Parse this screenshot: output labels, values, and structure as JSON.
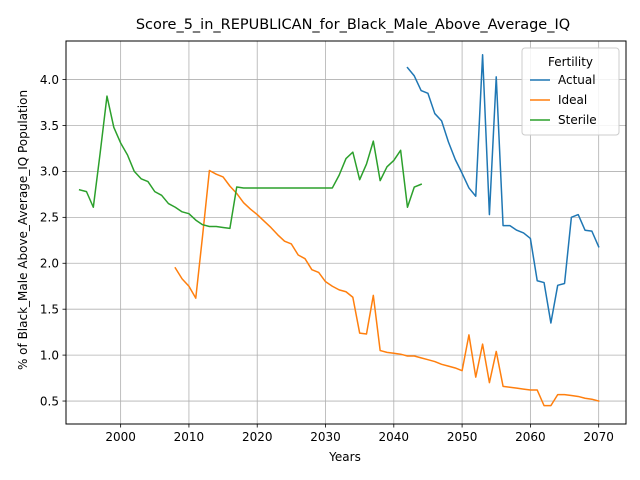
{
  "chart_data": {
    "type": "line",
    "title": "Score_5_in_REPUBLICAN_for_Black_Male_Above_Average_IQ",
    "xlabel": "Years",
    "ylabel": "% of Black_Male Above_Average_IQ Population",
    "xlim": [
      1992,
      2074
    ],
    "ylim": [
      0.25,
      4.42
    ],
    "xticks": [
      2000,
      2010,
      2020,
      2030,
      2040,
      2050,
      2060,
      2070
    ],
    "yticks": [
      0.5,
      1.0,
      1.5,
      2.0,
      2.5,
      3.0,
      3.5,
      4.0
    ],
    "xtick_labels": [
      "2000",
      "2010",
      "2020",
      "2030",
      "2040",
      "2050",
      "2060",
      "2070"
    ],
    "ytick_labels": [
      "0.5",
      "1.0",
      "1.5",
      "2.0",
      "2.5",
      "3.0",
      "3.5",
      "4.0"
    ],
    "grid": true,
    "legend": {
      "title": "Fertility",
      "placement": "top-right"
    },
    "series": [
      {
        "name": "Actual",
        "color": "#1f77b4",
        "x": [
          2042,
          2043,
          2044,
          2045,
          2046,
          2047,
          2048,
          2049,
          2050,
          2051,
          2052,
          2053,
          2054,
          2055,
          2056,
          2057,
          2058,
          2059,
          2060,
          2061,
          2062,
          2063,
          2064,
          2065,
          2066,
          2067,
          2068,
          2069,
          2070
        ],
        "y": [
          4.13,
          4.04,
          3.88,
          3.85,
          3.63,
          3.55,
          3.32,
          3.13,
          2.98,
          2.82,
          2.73,
          4.27,
          2.53,
          4.03,
          2.41,
          2.41,
          2.36,
          2.33,
          2.27,
          1.81,
          1.79,
          1.35,
          1.76,
          1.78,
          2.5,
          2.53,
          2.36,
          2.35,
          2.18
        ]
      },
      {
        "name": "Ideal",
        "color": "#ff7f0e",
        "x": [
          2008,
          2009,
          2010,
          2011,
          2012,
          2013,
          2014,
          2015,
          2016,
          2017,
          2018,
          2019,
          2020,
          2021,
          2022,
          2023,
          2024,
          2025,
          2026,
          2027,
          2028,
          2029,
          2030,
          2031,
          2032,
          2033,
          2034,
          2035,
          2036,
          2037,
          2038,
          2039,
          2040,
          2041,
          2042,
          2043,
          2044,
          2045,
          2046,
          2047,
          2048,
          2049,
          2050,
          2051,
          2052,
          2053,
          2054,
          2055,
          2056,
          2057,
          2058,
          2059,
          2060,
          2061,
          2062,
          2063,
          2064,
          2065,
          2066,
          2067,
          2068,
          2069,
          2070
        ],
        "y": [
          1.95,
          1.83,
          1.75,
          1.62,
          2.3,
          3.01,
          2.97,
          2.94,
          2.84,
          2.76,
          2.66,
          2.59,
          2.53,
          2.46,
          2.39,
          2.31,
          2.24,
          2.21,
          2.09,
          2.05,
          1.93,
          1.9,
          1.8,
          1.75,
          1.71,
          1.69,
          1.63,
          1.24,
          1.23,
          1.65,
          1.05,
          1.03,
          1.02,
          1.01,
          0.99,
          0.99,
          0.97,
          0.95,
          0.93,
          0.9,
          0.88,
          0.86,
          0.83,
          1.22,
          0.76,
          1.12,
          0.7,
          1.04,
          0.66,
          0.65,
          0.64,
          0.63,
          0.62,
          0.62,
          0.45,
          0.45,
          0.57,
          0.57,
          0.56,
          0.55,
          0.53,
          0.52,
          0.5
        ]
      },
      {
        "name": "Sterile",
        "color": "#2ca02c",
        "x": [
          1994,
          1995,
          1996,
          1997,
          1998,
          1999,
          2000,
          2001,
          2002,
          2003,
          2004,
          2005,
          2006,
          2007,
          2008,
          2009,
          2010,
          2011,
          2012,
          2013,
          2014,
          2015,
          2016,
          2017,
          2018,
          2019,
          2020,
          2021,
          2022,
          2023,
          2024,
          2025,
          2026,
          2027,
          2028,
          2029,
          2030,
          2031,
          2032,
          2033,
          2034,
          2035,
          2036,
          2037,
          2038,
          2039,
          2040,
          2041,
          2042,
          2043,
          2044
        ],
        "y": [
          2.8,
          2.78,
          2.61,
          3.2,
          3.82,
          3.48,
          3.31,
          3.18,
          3.0,
          2.92,
          2.89,
          2.78,
          2.74,
          2.65,
          2.61,
          2.56,
          2.54,
          2.47,
          2.42,
          2.4,
          2.4,
          2.39,
          2.38,
          2.83,
          2.82,
          2.82,
          2.82,
          2.82,
          2.82,
          2.82,
          2.82,
          2.82,
          2.82,
          2.82,
          2.82,
          2.82,
          2.82,
          2.82,
          2.96,
          3.14,
          3.21,
          2.91,
          3.08,
          3.33,
          2.9,
          3.05,
          3.12,
          3.23,
          2.61,
          2.83,
          2.86
        ]
      }
    ]
  }
}
